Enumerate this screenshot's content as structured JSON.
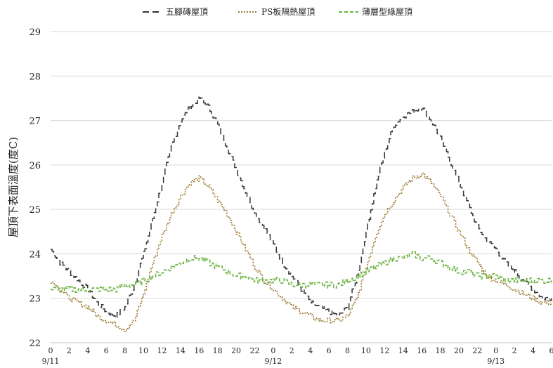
{
  "chart_data": {
    "type": "line",
    "ylabel": "屋頂下表面溫度(度C)",
    "ylim": [
      22,
      29
    ],
    "y_ticks": [
      22,
      23,
      24,
      25,
      26,
      27,
      28,
      29
    ],
    "grid": "horizontal",
    "legend_position": "top",
    "x_hour_ticks": [
      "0",
      "2",
      "4",
      "6",
      "8",
      "10",
      "12",
      "14",
      "16",
      "18",
      "20",
      "22",
      "0",
      "2",
      "4",
      "6",
      "8",
      "10",
      "12",
      "14",
      "16",
      "18",
      "20",
      "22",
      "0",
      "2",
      "4",
      "6"
    ],
    "date_labels": [
      {
        "label": "9/11",
        "hour": 0
      },
      {
        "label": "9/12",
        "hour": 24
      },
      {
        "label": "9/13",
        "hour": 48
      }
    ],
    "x_range_hours": [
      0,
      54
    ],
    "series": [
      {
        "name": "五腳磚屋頂",
        "color": "#333333",
        "style": "dashed",
        "x_hours": [
          0,
          1,
          2,
          3,
          4,
          5,
          6,
          7,
          8,
          9,
          10,
          11,
          12,
          13,
          14,
          15,
          16,
          17,
          18,
          19,
          20,
          21,
          22,
          23,
          24,
          25,
          26,
          27,
          28,
          29,
          30,
          31,
          32,
          33,
          34,
          35,
          36,
          37,
          38,
          39,
          40,
          41,
          42,
          43,
          44,
          45,
          46,
          47,
          48,
          49,
          50,
          51,
          52,
          53,
          54
        ],
        "values": [
          24.1,
          23.8,
          23.6,
          23.4,
          23.2,
          22.9,
          22.7,
          22.6,
          22.8,
          23.3,
          24.0,
          24.8,
          25.6,
          26.4,
          27.0,
          27.3,
          27.5,
          27.3,
          26.9,
          26.4,
          25.9,
          25.4,
          24.9,
          24.6,
          24.2,
          23.8,
          23.5,
          23.2,
          22.9,
          22.8,
          22.7,
          22.6,
          22.8,
          23.5,
          24.5,
          25.5,
          26.3,
          26.9,
          27.1,
          27.2,
          27.3,
          27.0,
          26.6,
          26.1,
          25.6,
          25.1,
          24.6,
          24.3,
          24.1,
          23.8,
          23.6,
          23.4,
          23.2,
          23.0,
          23.0
        ]
      },
      {
        "name": "PS板隔熱屋頂",
        "color": "#9c7a2f",
        "style": "dotted",
        "x_hours": [
          0,
          1,
          2,
          3,
          4,
          5,
          6,
          7,
          8,
          9,
          10,
          11,
          12,
          13,
          14,
          15,
          16,
          17,
          18,
          19,
          20,
          21,
          22,
          23,
          24,
          25,
          26,
          27,
          28,
          29,
          30,
          31,
          32,
          33,
          34,
          35,
          36,
          37,
          38,
          39,
          40,
          41,
          42,
          43,
          44,
          45,
          46,
          47,
          48,
          49,
          50,
          51,
          52,
          53,
          54
        ],
        "values": [
          23.4,
          23.2,
          23.0,
          22.9,
          22.8,
          22.6,
          22.5,
          22.4,
          22.3,
          22.5,
          23.1,
          23.8,
          24.4,
          24.9,
          25.3,
          25.6,
          25.7,
          25.5,
          25.2,
          24.9,
          24.5,
          24.1,
          23.7,
          23.4,
          23.2,
          23.0,
          22.8,
          22.7,
          22.6,
          22.5,
          22.5,
          22.5,
          22.6,
          23.0,
          23.7,
          24.4,
          24.9,
          25.2,
          25.5,
          25.7,
          25.8,
          25.6,
          25.3,
          24.9,
          24.5,
          24.1,
          23.8,
          23.5,
          23.4,
          23.3,
          23.2,
          23.1,
          23.0,
          22.9,
          22.9
        ]
      },
      {
        "name": "薄層型綠屋頂",
        "color": "#6ab23e",
        "style": "dashed",
        "x_hours": [
          0,
          1,
          2,
          3,
          4,
          5,
          6,
          7,
          8,
          9,
          10,
          11,
          12,
          13,
          14,
          15,
          16,
          17,
          18,
          19,
          20,
          21,
          22,
          23,
          24,
          25,
          26,
          27,
          28,
          29,
          30,
          31,
          32,
          33,
          34,
          35,
          36,
          37,
          38,
          39,
          40,
          41,
          42,
          43,
          44,
          45,
          46,
          47,
          48,
          49,
          50,
          51,
          52,
          53,
          54
        ],
        "values": [
          23.2,
          23.2,
          23.2,
          23.2,
          23.2,
          23.2,
          23.2,
          23.2,
          23.3,
          23.3,
          23.4,
          23.5,
          23.6,
          23.7,
          23.8,
          23.9,
          23.9,
          23.8,
          23.7,
          23.6,
          23.5,
          23.5,
          23.4,
          23.4,
          23.4,
          23.4,
          23.3,
          23.3,
          23.3,
          23.3,
          23.3,
          23.3,
          23.4,
          23.5,
          23.6,
          23.7,
          23.8,
          23.9,
          23.9,
          24.0,
          23.9,
          23.9,
          23.8,
          23.7,
          23.6,
          23.6,
          23.5,
          23.5,
          23.5,
          23.4,
          23.4,
          23.4,
          23.4,
          23.4,
          23.4
        ]
      }
    ]
  }
}
